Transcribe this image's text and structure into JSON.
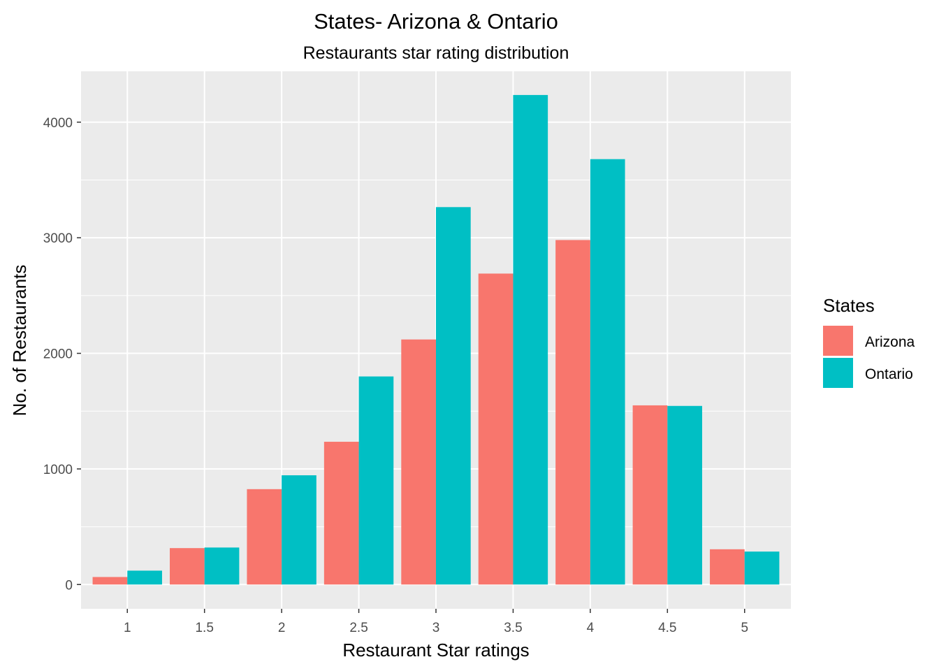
{
  "chart_data": {
    "type": "bar",
    "title": "States- Arizona & Ontario",
    "subtitle": "Restaurants star rating distribution",
    "xlabel": "Restaurant Star ratings",
    "ylabel": "No. of Restaurants",
    "categories": [
      "1",
      "1.5",
      "2",
      "2.5",
      "3",
      "3.5",
      "4",
      "4.5",
      "5"
    ],
    "series": [
      {
        "name": "Arizona",
        "color": "#F8766D",
        "values": [
          65,
          315,
          825,
          1235,
          2120,
          2690,
          2980,
          1550,
          305
        ]
      },
      {
        "name": "Ontario",
        "color": "#00BFC4",
        "values": [
          120,
          320,
          945,
          1800,
          3265,
          4235,
          3680,
          1545,
          285
        ]
      }
    ],
    "y_ticks": [
      0,
      1000,
      2000,
      3000,
      4000
    ],
    "ylim": [
      -210,
      4440
    ],
    "grid": true,
    "panel_background": "#EBEBEB",
    "gridline_color": "#FFFFFF",
    "legend": {
      "title": "States",
      "placement": "right"
    }
  }
}
